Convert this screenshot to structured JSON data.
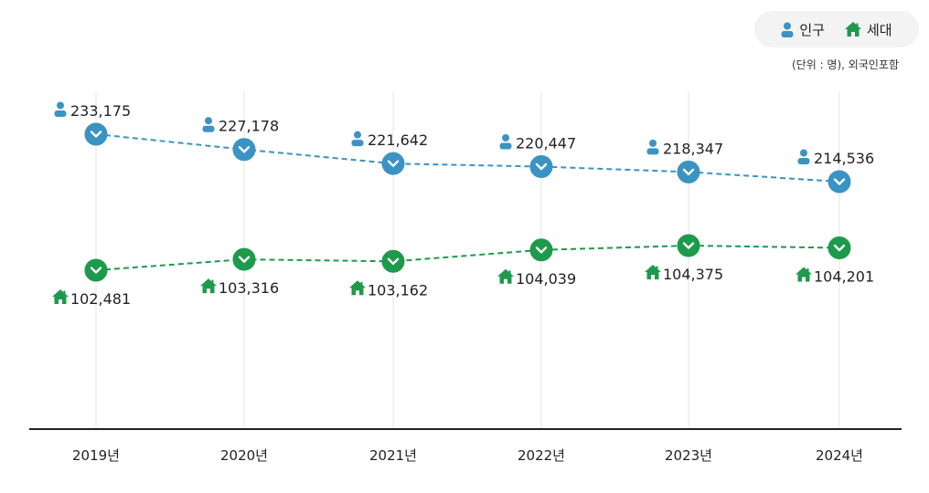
{
  "legend": {
    "population_label": "인구",
    "household_label": "세대"
  },
  "unit_note": "(단위 : 명), 외국인포함",
  "chart_data": {
    "type": "line",
    "categories": [
      "2019년",
      "2020년",
      "2021년",
      "2022년",
      "2023년",
      "2024년"
    ],
    "series": [
      {
        "name": "인구",
        "values": [
          233175,
          227178,
          221642,
          220447,
          218347,
          214536
        ],
        "labels": [
          "233,175",
          "227,178",
          "221,642",
          "220,447",
          "218,347",
          "214,536"
        ],
        "color": "#3a93c3",
        "icon": "person-icon"
      },
      {
        "name": "세대",
        "values": [
          102481,
          103316,
          103162,
          104039,
          104375,
          104201
        ],
        "labels": [
          "102,481",
          "103,316",
          "103,162",
          "104,039",
          "104,375",
          "104,201"
        ],
        "color": "#1e9a4c",
        "icon": "house-icon"
      }
    ],
    "grid": "vertical",
    "legend_position": "top-right"
  }
}
